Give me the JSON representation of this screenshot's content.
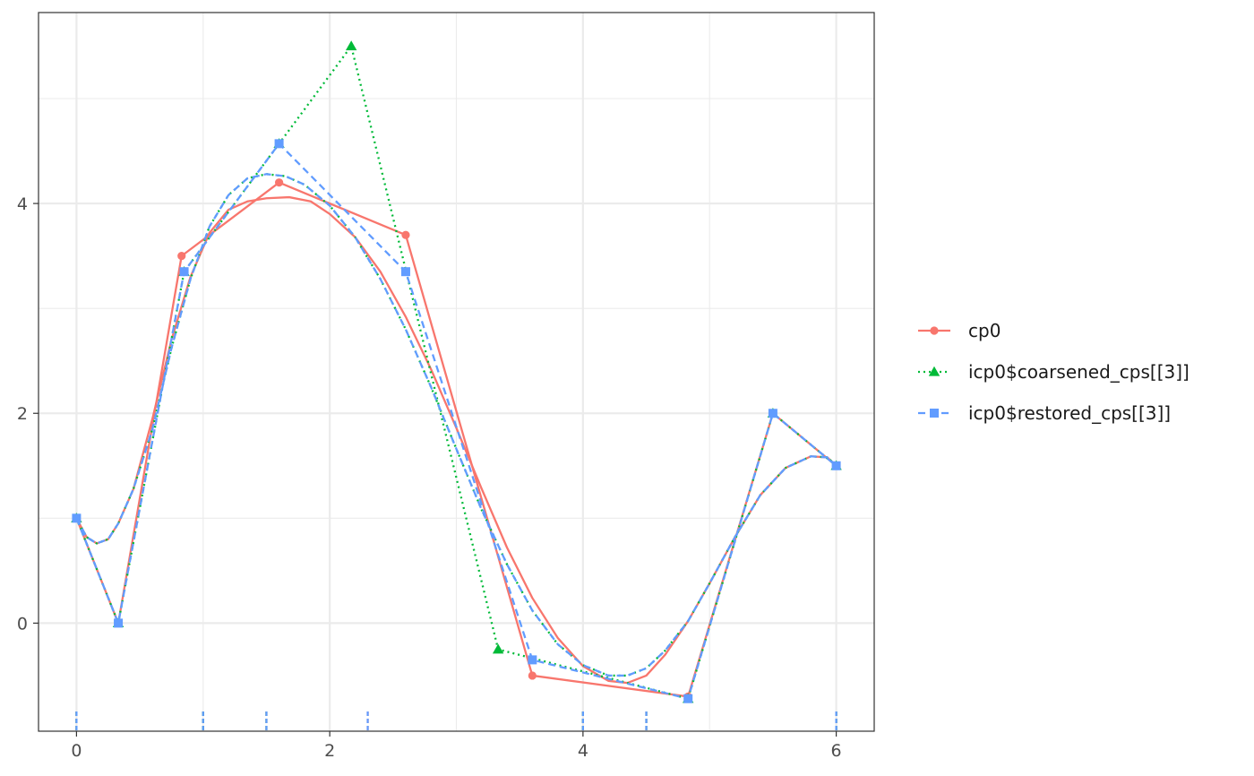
{
  "chart_data": {
    "type": "line",
    "title": "",
    "xlabel": "",
    "ylabel": "",
    "xlim": [
      -0.3,
      6.3
    ],
    "ylim": [
      -1.03,
      5.82
    ],
    "x_ticks": [
      0,
      2,
      4,
      6
    ],
    "y_ticks": [
      0,
      2,
      4
    ],
    "grid": true,
    "legend_position": "right",
    "series": [
      {
        "name": "cp0",
        "color": "#F8766D",
        "linestyle": "solid",
        "marker": "circle",
        "control_points": {
          "x": [
            0,
            0.33,
            0.83,
            1.6,
            2.6,
            3.6,
            4.83,
            5.5,
            6.0
          ],
          "y": [
            1.0,
            0.0,
            3.5,
            4.2,
            3.7,
            -0.5,
            -0.7,
            2.0,
            1.5
          ]
        },
        "curve": {
          "x": [
            0,
            0.08,
            0.16,
            0.25,
            0.33,
            0.45,
            0.6,
            0.75,
            0.9,
            1.05,
            1.2,
            1.35,
            1.5,
            1.68,
            1.85,
            2.0,
            2.2,
            2.4,
            2.6,
            2.8,
            3.0,
            3.2,
            3.4,
            3.6,
            3.8,
            4.0,
            4.2,
            4.35,
            4.5,
            4.65,
            4.83,
            5.0,
            5.2,
            5.4,
            5.6,
            5.8,
            5.93,
            6.0
          ],
          "y": [
            1.0,
            0.82,
            0.76,
            0.8,
            0.95,
            1.28,
            1.95,
            2.7,
            3.3,
            3.72,
            3.94,
            4.02,
            4.05,
            4.06,
            4.02,
            3.9,
            3.68,
            3.35,
            2.92,
            2.42,
            1.86,
            1.28,
            0.72,
            0.24,
            -0.14,
            -0.41,
            -0.55,
            -0.57,
            -0.5,
            -0.3,
            0.02,
            0.38,
            0.82,
            1.22,
            1.48,
            1.59,
            1.58,
            1.5
          ]
        }
      },
      {
        "name": "icp0$coarsened_cps[[3]]",
        "color": "#00BA38",
        "linestyle": "dotted",
        "marker": "triangle",
        "control_points": {
          "x": [
            0,
            0.33,
            0.85,
            1.6,
            2.17,
            3.33,
            4.83,
            5.5,
            6.0
          ],
          "y": [
            1.0,
            0.0,
            3.35,
            4.57,
            5.5,
            -0.25,
            -0.72,
            2.0,
            1.5
          ]
        },
        "curve": {
          "x": [
            0,
            0.08,
            0.16,
            0.25,
            0.33,
            0.45,
            0.6,
            0.75,
            0.9,
            1.05,
            1.2,
            1.35,
            1.5,
            1.65,
            1.8,
            2.0,
            2.2,
            2.4,
            2.6,
            2.8,
            3.0,
            3.2,
            3.4,
            3.6,
            3.8,
            4.0,
            4.2,
            4.35,
            4.5,
            4.65,
            4.83,
            5.0,
            5.2,
            5.4,
            5.6,
            5.8,
            5.93,
            6.0
          ],
          "y": [
            1.0,
            0.82,
            0.76,
            0.8,
            0.95,
            1.28,
            1.85,
            2.62,
            3.28,
            3.78,
            4.08,
            4.24,
            4.28,
            4.26,
            4.18,
            3.98,
            3.68,
            3.28,
            2.8,
            2.25,
            1.66,
            1.08,
            0.56,
            0.12,
            -0.2,
            -0.4,
            -0.5,
            -0.5,
            -0.43,
            -0.26,
            0.02,
            0.38,
            0.82,
            1.22,
            1.48,
            1.59,
            1.58,
            1.5
          ]
        }
      },
      {
        "name": "icp0$restored_cps[[3]]",
        "color": "#619CFF",
        "linestyle": "dashed",
        "marker": "square",
        "control_points": {
          "x": [
            0,
            0.33,
            0.85,
            1.6,
            2.6,
            3.6,
            4.83,
            5.5,
            6.0
          ],
          "y": [
            1.0,
            0.0,
            3.35,
            4.57,
            3.35,
            -0.35,
            -0.72,
            2.0,
            1.5
          ]
        },
        "curve": {
          "x": [
            0,
            0.08,
            0.16,
            0.25,
            0.33,
            0.45,
            0.6,
            0.75,
            0.9,
            1.05,
            1.2,
            1.35,
            1.5,
            1.65,
            1.8,
            2.0,
            2.2,
            2.4,
            2.6,
            2.8,
            3.0,
            3.2,
            3.4,
            3.6,
            3.8,
            4.0,
            4.2,
            4.35,
            4.5,
            4.65,
            4.83,
            5.0,
            5.2,
            5.4,
            5.6,
            5.8,
            5.93,
            6.0
          ],
          "y": [
            1.0,
            0.82,
            0.76,
            0.8,
            0.95,
            1.28,
            1.85,
            2.62,
            3.28,
            3.78,
            4.08,
            4.24,
            4.28,
            4.26,
            4.18,
            3.98,
            3.68,
            3.28,
            2.8,
            2.25,
            1.66,
            1.08,
            0.56,
            0.12,
            -0.2,
            -0.4,
            -0.5,
            -0.5,
            -0.43,
            -0.26,
            0.02,
            0.38,
            0.82,
            1.22,
            1.48,
            1.59,
            1.58,
            1.5
          ]
        }
      }
    ],
    "knot_rugs": [
      {
        "color": "#F8766D",
        "x": [
          0,
          1.0,
          1.5,
          2.3,
          4.0,
          4.5,
          6.0
        ]
      },
      {
        "color": "#00BA38",
        "x": [
          0,
          1.0,
          1.5,
          4.0,
          4.5,
          6.0
        ]
      },
      {
        "color": "#619CFF",
        "x": [
          0,
          1.0,
          1.5,
          2.3,
          4.0,
          4.5,
          6.0
        ]
      }
    ]
  }
}
